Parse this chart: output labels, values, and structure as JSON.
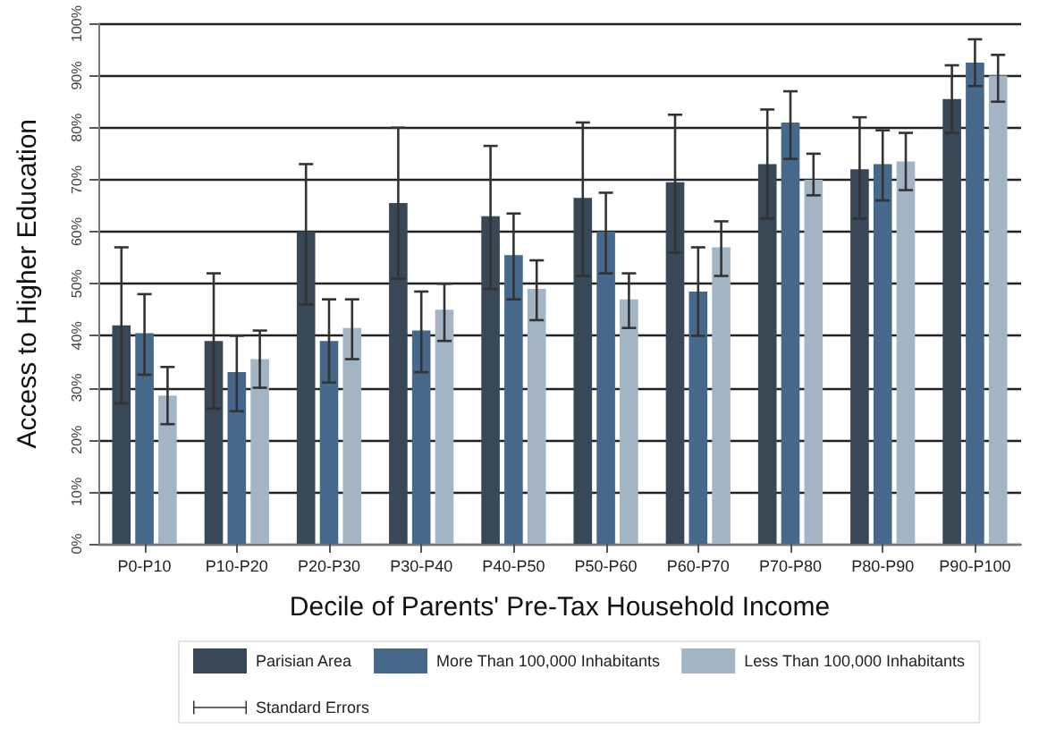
{
  "chart_data": {
    "type": "bar",
    "xlabel": "Decile of Parents' Pre-Tax Household Income",
    "ylabel": "Access to Higher Education",
    "categories": [
      "P0-P10",
      "P10-P20",
      "P20-P30",
      "P30-P40",
      "P40-P50",
      "P50-P60",
      "P60-P70",
      "P70-P80",
      "P80-P90",
      "P90-P100"
    ],
    "series": [
      {
        "name": "Parisian Area",
        "color": "#384856",
        "values": [
          42,
          39,
          60,
          65.5,
          63,
          66.5,
          69.5,
          73,
          72,
          85.5
        ],
        "errors": [
          [
            27,
            57
          ],
          [
            26,
            52
          ],
          [
            46,
            73
          ],
          [
            51,
            80
          ],
          [
            49,
            76.5
          ],
          [
            51.5,
            81
          ],
          [
            56,
            82.5
          ],
          [
            62.5,
            83.5
          ],
          [
            62.5,
            82
          ],
          [
            79,
            92
          ]
        ]
      },
      {
        "name": "More Than 100,000 Inhabitants",
        "color": "#46698b",
        "values": [
          40.5,
          33,
          39,
          41,
          55.5,
          60,
          48.5,
          81,
          73,
          92.5
        ],
        "errors": [
          [
            32.5,
            48
          ],
          [
            25.5,
            40
          ],
          [
            31,
            47
          ],
          [
            33,
            48.5
          ],
          [
            47,
            63.5
          ],
          [
            52,
            67.5
          ],
          [
            40,
            57
          ],
          [
            74,
            87
          ],
          [
            66,
            79.5
          ],
          [
            88,
            97
          ]
        ]
      },
      {
        "name": "Less Than 100,000 Inhabitants",
        "color": "#a3b4c5",
        "values": [
          28.5,
          35.5,
          41.5,
          45,
          49,
          47,
          57,
          70,
          73.5,
          90
        ],
        "errors": [
          [
            23,
            34
          ],
          [
            30,
            41
          ],
          [
            35.5,
            47
          ],
          [
            39,
            50
          ],
          [
            43,
            54.5
          ],
          [
            41.5,
            52
          ],
          [
            51.5,
            62
          ],
          [
            67,
            75
          ],
          [
            68,
            79
          ],
          [
            85,
            94
          ]
        ]
      }
    ],
    "annotations": [
      "Standard Errors"
    ],
    "ylim": [
      0,
      100
    ],
    "yticks": [
      {
        "value": 0,
        "label": "0%"
      },
      {
        "value": 10,
        "label": "10%"
      },
      {
        "value": 20,
        "label": "20%"
      },
      {
        "value": 30,
        "label": "30%"
      },
      {
        "value": 40,
        "label": "40%"
      },
      {
        "value": 50,
        "label": "50%"
      },
      {
        "value": 60,
        "label": "60%"
      },
      {
        "value": 70,
        "label": "70%"
      },
      {
        "value": 80,
        "label": "80%"
      },
      {
        "value": 90,
        "label": "90%"
      },
      {
        "value": 100,
        "label": "100%"
      }
    ],
    "grid": "y",
    "legend": "bottom"
  }
}
